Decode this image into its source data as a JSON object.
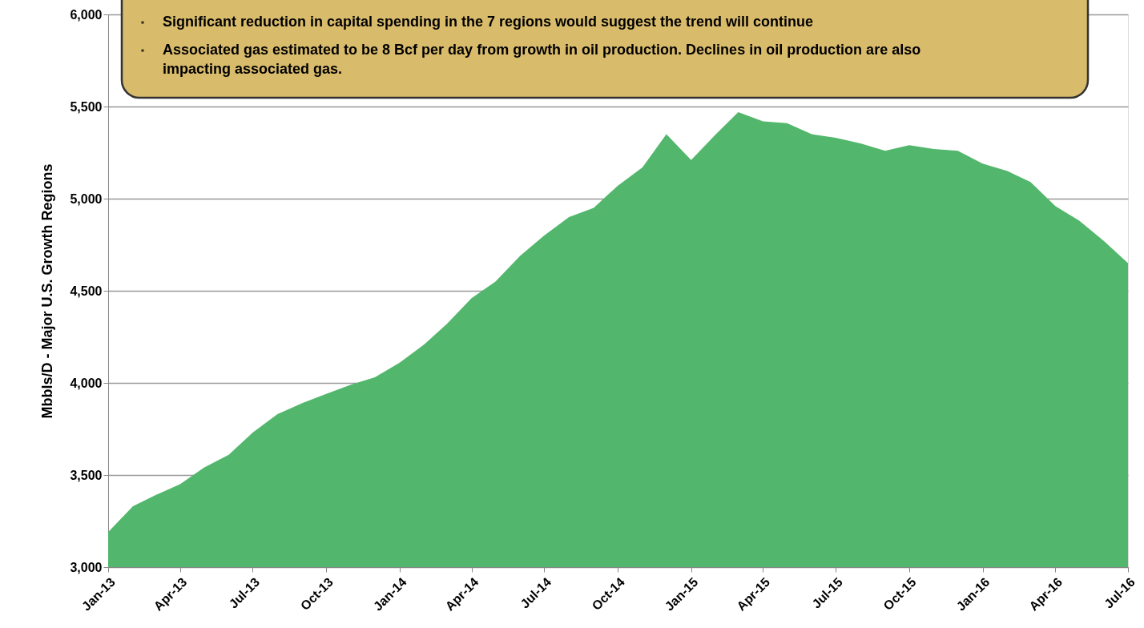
{
  "chart_data": {
    "type": "area",
    "ylabel": "Mbbls/D - Major U.S. Growth Regions",
    "annotations": [
      "Significant reduction in capital spending in the 7 regions would suggest the trend will continue",
      "Associated gas estimated to be 8 Bcf per day from growth in oil production. Declines in oil production are also impacting associated gas."
    ],
    "x": [
      "2013-01",
      "2013-02",
      "2013-03",
      "2013-04",
      "2013-05",
      "2013-06",
      "2013-07",
      "2013-08",
      "2013-09",
      "2013-10",
      "2013-11",
      "2013-12",
      "2014-01",
      "2014-02",
      "2014-03",
      "2014-04",
      "2014-05",
      "2014-06",
      "2014-07",
      "2014-08",
      "2014-09",
      "2014-10",
      "2014-11",
      "2014-12",
      "2015-01",
      "2015-02",
      "2015-03",
      "2015-04",
      "2015-05",
      "2015-06",
      "2015-07",
      "2015-08",
      "2015-09",
      "2015-10",
      "2015-11",
      "2015-12",
      "2016-01",
      "2016-02",
      "2016-03",
      "2016-04",
      "2016-05",
      "2016-06",
      "2016-07"
    ],
    "values": [
      3190,
      3330,
      3390,
      3450,
      3540,
      3610,
      3730,
      3830,
      3890,
      3940,
      3990,
      4030,
      4110,
      4210,
      4320,
      4460,
      4550,
      4690,
      4800,
      4900,
      4950,
      5070,
      5170,
      5350,
      5210,
      5350,
      5470,
      5420,
      5410,
      5350,
      5330,
      5300,
      5260,
      5290,
      5270,
      5260,
      5190,
      5150,
      5090,
      4960,
      4880,
      4770,
      4650
    ],
    "color": "#52b76c",
    "xlim": [
      "2013-01",
      "2016-07"
    ],
    "xticks": [
      {
        "value": "2013-01",
        "label": "Jan-13"
      },
      {
        "value": "2013-04",
        "label": "Apr-13"
      },
      {
        "value": "2013-07",
        "label": "Jul-13"
      },
      {
        "value": "2013-10",
        "label": "Oct-13"
      },
      {
        "value": "2014-01",
        "label": "Jan-14"
      },
      {
        "value": "2014-04",
        "label": "Apr-14"
      },
      {
        "value": "2014-07",
        "label": "Jul-14"
      },
      {
        "value": "2014-10",
        "label": "Oct-14"
      },
      {
        "value": "2015-01",
        "label": "Jan-15"
      },
      {
        "value": "2015-04",
        "label": "Apr-15"
      },
      {
        "value": "2015-07",
        "label": "Jul-15"
      },
      {
        "value": "2015-10",
        "label": "Oct-15"
      },
      {
        "value": "2016-01",
        "label": "Jan-16"
      },
      {
        "value": "2016-04",
        "label": "Apr-16"
      },
      {
        "value": "2016-07",
        "label": "Jul-16"
      }
    ],
    "ylim": [
      3000,
      6000
    ],
    "yticks": [
      {
        "value": 3000,
        "label": "3,000"
      },
      {
        "value": 3500,
        "label": "3,500"
      },
      {
        "value": 4000,
        "label": "4,000"
      },
      {
        "value": 4500,
        "label": "4,500"
      },
      {
        "value": 5000,
        "label": "5,000"
      },
      {
        "value": 5500,
        "label": "5,500"
      },
      {
        "value": 6000,
        "label": "6,000"
      }
    ],
    "grid": "y"
  }
}
